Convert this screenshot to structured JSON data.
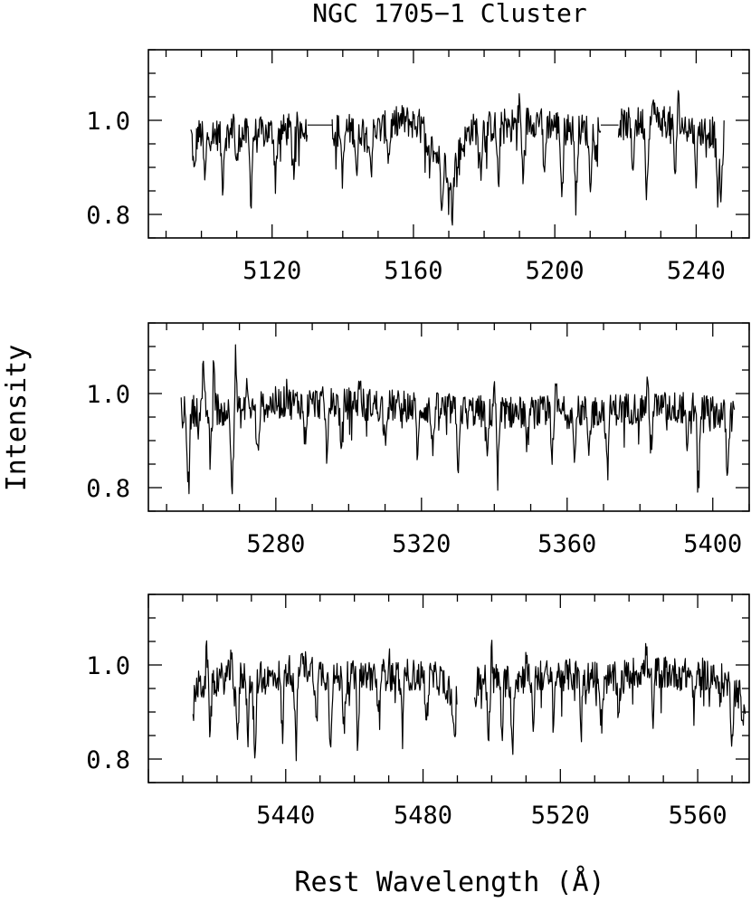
{
  "chart_data": {
    "type": "line",
    "title": "NGC 1705−1 Cluster",
    "xlabel": "Rest Wavelength (Å)",
    "ylabel": "Intensity",
    "ylim": [
      0.75,
      1.15
    ],
    "yticks": [
      0.8,
      1.0
    ],
    "grid": false,
    "panels": [
      {
        "xlim": [
          5085,
          5255
        ],
        "xticks": [
          5120,
          5160,
          5200,
          5240
        ],
        "segments": [
          {
            "x_start": 5097,
            "x_end": 5130,
            "anchors": [
              [
                5097,
                0.97
              ],
              [
                5113,
                0.97
              ],
              [
                5125,
                0.98
              ],
              [
                5130,
                0.99
              ]
            ],
            "dips": [
              [
                5098,
                0.88
              ],
              [
                5101,
                0.87
              ],
              [
                5106,
                0.87
              ],
              [
                5110,
                0.9
              ],
              [
                5114,
                0.84
              ],
              [
                5121,
                0.88
              ],
              [
                5126,
                0.85
              ]
            ],
            "peaks": [
              [
                5109,
                1.02
              ],
              [
                5126,
                1.05
              ]
            ]
          },
          {
            "x_start": 5130,
            "x_end": 5137,
            "flat": 0.99
          },
          {
            "x_start": 5137,
            "x_end": 5213,
            "anchors": [
              [
                5137,
                0.98
              ],
              [
                5150,
                0.98
              ],
              [
                5157,
                1.0
              ],
              [
                5162,
                0.99
              ],
              [
                5166,
                0.93
              ],
              [
                5171,
                0.9
              ],
              [
                5176,
                0.98
              ],
              [
                5185,
                0.99
              ],
              [
                5195,
                1.0
              ],
              [
                5205,
                0.98
              ],
              [
                5213,
                0.98
              ]
            ],
            "dips": [
              [
                5140,
                0.88
              ],
              [
                5144,
                0.89
              ],
              [
                5148,
                0.9
              ],
              [
                5153,
                0.92
              ],
              [
                5164,
                0.91
              ],
              [
                5168,
                0.84
              ],
              [
                5170,
                0.83
              ],
              [
                5171,
                0.81
              ],
              [
                5179,
                0.9
              ],
              [
                5184,
                0.83
              ],
              [
                5191,
                0.88
              ],
              [
                5197,
                0.88
              ],
              [
                5202,
                0.85
              ],
              [
                5206,
                0.84
              ],
              [
                5210,
                0.87
              ]
            ],
            "peaks": [
              [
                5184,
                1.05
              ],
              [
                5190,
                1.04
              ],
              [
                5196,
                1.04
              ]
            ]
          },
          {
            "x_start": 5213,
            "x_end": 5218,
            "flat": 0.99
          },
          {
            "x_start": 5218,
            "x_end": 5248,
            "anchors": [
              [
                5218,
                0.99
              ],
              [
                5230,
                1.0
              ],
              [
                5240,
                0.98
              ],
              [
                5248,
                0.97
              ]
            ],
            "dips": [
              [
                5222,
                0.9
              ],
              [
                5226,
                0.85
              ],
              [
                5234,
                0.89
              ],
              [
                5240,
                0.89
              ],
              [
                5246,
                0.84
              ],
              [
                5247,
                0.83
              ]
            ],
            "peaks": [
              [
                5228,
                1.05
              ],
              [
                5235,
                1.04
              ]
            ]
          }
        ]
      },
      {
        "xlim": [
          5245,
          5410
        ],
        "xticks": [
          5280,
          5320,
          5360,
          5400
        ],
        "segments": [
          {
            "x_start": 5254,
            "x_end": 5406,
            "anchors": [
              [
                5254,
                0.96
              ],
              [
                5262,
                0.97
              ],
              [
                5270,
                0.96
              ],
              [
                5280,
                0.98
              ],
              [
                5300,
                0.98
              ],
              [
                5320,
                0.97
              ],
              [
                5340,
                0.96
              ],
              [
                5360,
                0.96
              ],
              [
                5380,
                0.97
              ],
              [
                5395,
                0.97
              ],
              [
                5406,
                0.95
              ]
            ],
            "dips": [
              [
                5256,
                0.81
              ],
              [
                5262,
                0.86
              ],
              [
                5268,
                0.82
              ],
              [
                5275,
                0.86
              ],
              [
                5288,
                0.9
              ],
              [
                5294,
                0.88
              ],
              [
                5298,
                0.87
              ],
              [
                5310,
                0.9
              ],
              [
                5319,
                0.87
              ],
              [
                5323,
                0.88
              ],
              [
                5330,
                0.85
              ],
              [
                5338,
                0.86
              ],
              [
                5341,
                0.84
              ],
              [
                5349,
                0.88
              ],
              [
                5356,
                0.87
              ],
              [
                5362,
                0.88
              ],
              [
                5366,
                0.89
              ],
              [
                5371,
                0.83
              ],
              [
                5383,
                0.89
              ],
              [
                5393,
                0.86
              ],
              [
                5396,
                0.8
              ],
              [
                5404,
                0.84
              ]
            ],
            "peaks": [
              [
                5260,
                1.05
              ],
              [
                5263,
                1.09
              ],
              [
                5269,
                1.08
              ],
              [
                5272,
                1.03
              ],
              [
                5283,
                1.02
              ],
              [
                5303,
                1.04
              ],
              [
                5340,
                1.03
              ],
              [
                5357,
                1.02
              ],
              [
                5382,
                1.03
              ]
            ]
          }
        ]
      },
      {
        "xlim": [
          5400,
          5575
        ],
        "xticks": [
          5440,
          5480,
          5520,
          5560
        ],
        "segments": [
          {
            "x_start": 5413,
            "x_end": 5490,
            "anchors": [
              [
                5413,
                0.95
              ],
              [
                5425,
                0.98
              ],
              [
                5435,
                0.97
              ],
              [
                5445,
                1.0
              ],
              [
                5455,
                0.97
              ],
              [
                5465,
                0.98
              ],
              [
                5475,
                0.98
              ],
              [
                5485,
                0.97
              ],
              [
                5490,
                0.93
              ]
            ],
            "dips": [
              [
                5413,
                0.9
              ],
              [
                5418,
                0.87
              ],
              [
                5426,
                0.83
              ],
              [
                5429,
                0.86
              ],
              [
                5431,
                0.79
              ],
              [
                5439,
                0.85
              ],
              [
                5443,
                0.79
              ],
              [
                5449,
                0.9
              ],
              [
                5453,
                0.84
              ],
              [
                5457,
                0.88
              ],
              [
                5461,
                0.87
              ],
              [
                5467,
                0.89
              ],
              [
                5474,
                0.85
              ],
              [
                5481,
                0.87
              ],
              [
                5489,
                0.84
              ]
            ],
            "peaks": [
              [
                5417,
                1.04
              ],
              [
                5424,
                1.05
              ],
              [
                5443,
                1.02
              ],
              [
                5470,
                1.02
              ]
            ]
          },
          {
            "x_start": 5495,
            "x_end": 5574,
            "anchors": [
              [
                5495,
                0.97
              ],
              [
                5505,
                0.97
              ],
              [
                5520,
                0.98
              ],
              [
                5535,
                0.97
              ],
              [
                5545,
                0.99
              ],
              [
                5555,
                0.98
              ],
              [
                5565,
                0.98
              ],
              [
                5574,
                0.93
              ]
            ],
            "dips": [
              [
                5495,
                0.9
              ],
              [
                5499,
                0.85
              ],
              [
                5503,
                0.86
              ],
              [
                5506,
                0.83
              ],
              [
                5512,
                0.87
              ],
              [
                5518,
                0.89
              ],
              [
                5526,
                0.88
              ],
              [
                5532,
                0.87
              ],
              [
                5537,
                0.86
              ],
              [
                5547,
                0.88
              ],
              [
                5559,
                0.9
              ],
              [
                5566,
                0.89
              ],
              [
                5570,
                0.85
              ],
              [
                5573,
                0.88
              ]
            ],
            "peaks": [
              [
                5500,
                1.03
              ],
              [
                5510,
                1.03
              ],
              [
                5537,
                1.04
              ],
              [
                5545,
                1.03
              ],
              [
                5566,
                1.04
              ]
            ]
          }
        ]
      }
    ]
  }
}
